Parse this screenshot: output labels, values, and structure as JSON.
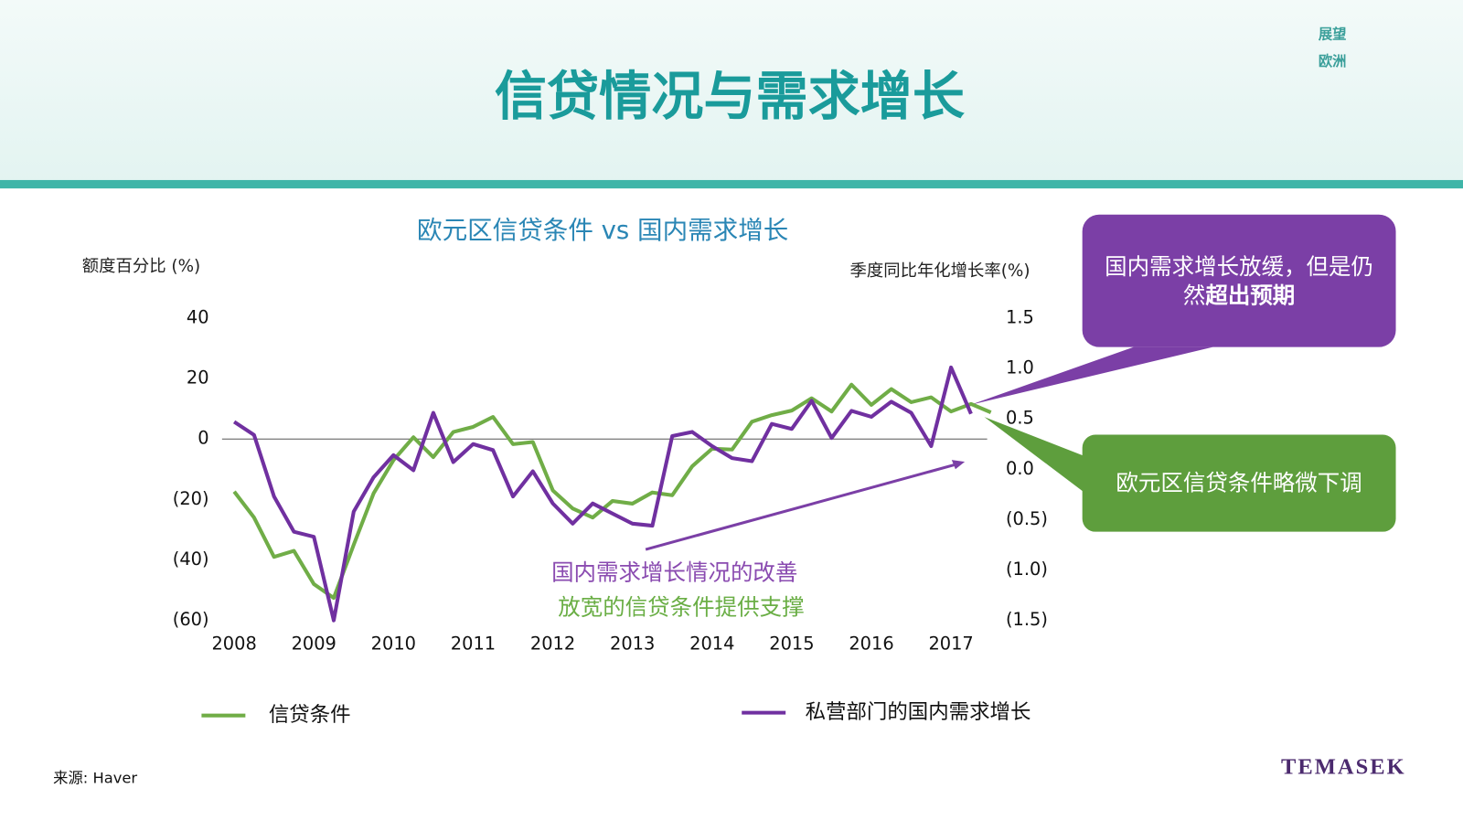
{
  "header": {
    "title": "信贷情况与需求增长",
    "badge": [
      "展望",
      "欧洲"
    ]
  },
  "chart_data": {
    "type": "line",
    "title": "欧元区信贷条件 vs 国内需求增长",
    "y_label": "额度百分比 (%)",
    "y2_label": "季度同比年化增长率(%)",
    "x": [
      2008,
      2008.25,
      2008.5,
      2008.75,
      2009,
      2009.25,
      2009.5,
      2009.75,
      2010,
      2010.25,
      2010.5,
      2010.75,
      2011,
      2011.25,
      2011.5,
      2011.75,
      2012,
      2012.25,
      2012.5,
      2012.75,
      2013,
      2013.25,
      2013.5,
      2013.75,
      2014,
      2014.25,
      2014.5,
      2014.75,
      2015,
      2015.25,
      2015.5,
      2015.75,
      2016,
      2016.25,
      2016.5,
      2016.75,
      2017,
      2017.25,
      2017.5
    ],
    "xlim": [
      2008,
      2017.5
    ],
    "xticks": [
      2008,
      2009,
      2010,
      2011,
      2012,
      2013,
      2014,
      2015,
      2016,
      2017
    ],
    "ylim": [
      -60,
      40
    ],
    "yticks": [
      40,
      20,
      0,
      {
        "value": -20,
        "label": "(20)"
      },
      {
        "value": -40,
        "label": "(40)"
      },
      {
        "value": -60,
        "label": "(60)"
      }
    ],
    "y2lim": [
      -1.5,
      1.5
    ],
    "y2ticks": [
      1.5,
      {
        "value": 1,
        "label": "1.0"
      },
      0.5,
      {
        "value": 0,
        "label": "0.0"
      },
      {
        "value": -0.5,
        "label": "(0.5)"
      },
      {
        "value": -1,
        "label": "(1.0)"
      },
      {
        "value": -1.5,
        "label": "(1.5)"
      }
    ],
    "series": [
      {
        "name": "信贷条件",
        "color": "#70ad47",
        "values": [
          -17.4,
          -26,
          -39,
          -37,
          -48,
          -52.6,
          -35,
          -18,
          -7,
          0.6,
          -6,
          2.3,
          4,
          7.3,
          -1.7,
          -1,
          -17,
          -23,
          -26,
          -20.5,
          -21.4,
          -17.7,
          -18.6,
          -9,
          -3.2,
          -3.5,
          5.7,
          7.9,
          9.4,
          13.5,
          9.1,
          18,
          11.3,
          16.5,
          12.2,
          13.8,
          9.1,
          11.6,
          8.8
        ]
      },
      {
        "name": "私营部门的国内需求增长",
        "color": "#7030a0",
        "axis": "y2",
        "values": [
          0.47,
          0.34,
          -0.27,
          -0.62,
          -0.67,
          -1.5,
          -0.42,
          -0.08,
          0.14,
          -0.01,
          0.56,
          0.07,
          0.25,
          0.19,
          -0.27,
          -0.02,
          -0.34,
          -0.54,
          -0.34,
          -0.44,
          -0.54,
          -0.56,
          0.33,
          0.37,
          0.23,
          0.11,
          0.08,
          0.45,
          0.4,
          0.68,
          0.31,
          0.58,
          0.52,
          0.67,
          0.56,
          0.23,
          1.01,
          0.55,
          null
        ]
      }
    ],
    "annotations": [
      "国内需求增长情况的改善",
      "放宽的信贷条件提供支撑"
    ]
  },
  "callouts": {
    "demand": {
      "line1": "国内需求增长放缓，但是仍",
      "line2": "然",
      "line2_bold": "超出预期"
    },
    "credit": "欧元区信贷条件略微下调"
  },
  "footer": {
    "source": "来源: Haver",
    "logo": "TEMASEK"
  }
}
